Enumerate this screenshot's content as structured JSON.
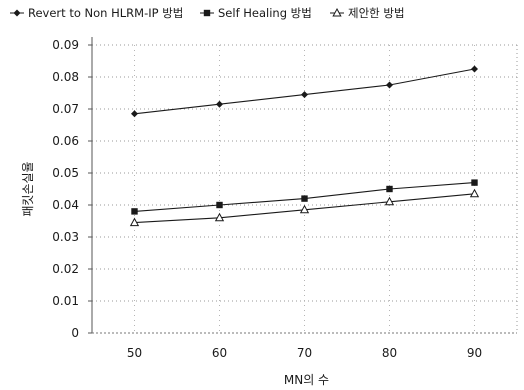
{
  "chart_data": {
    "type": "line",
    "x": [
      50,
      60,
      70,
      80,
      90
    ],
    "xlabel": "MN의 수",
    "ylabel": "패킷손실율",
    "ylim": [
      0,
      0.09
    ],
    "yticks": [
      "0",
      "0.01",
      "0.02",
      "0.03",
      "0.04",
      "0.05",
      "0.06",
      "0.07",
      "0.08",
      "0.09"
    ],
    "xticks": [
      "50",
      "60",
      "70",
      "80",
      "90"
    ],
    "grid": true,
    "legend_position": "top",
    "series": [
      {
        "name": "Revert to Non HLRM-IP 방법",
        "marker": "diamond",
        "color": "#1a1a1a",
        "values": [
          0.0685,
          0.0715,
          0.0745,
          0.0775,
          0.0825
        ]
      },
      {
        "name": "Self Healing 방법",
        "marker": "square",
        "color": "#1a1a1a",
        "values": [
          0.038,
          0.04,
          0.042,
          0.045,
          0.047
        ]
      },
      {
        "name": "제안한 방법",
        "marker": "triangle",
        "color": "#1a1a1a",
        "values": [
          0.0345,
          0.036,
          0.0385,
          0.041,
          0.0435
        ]
      }
    ]
  }
}
